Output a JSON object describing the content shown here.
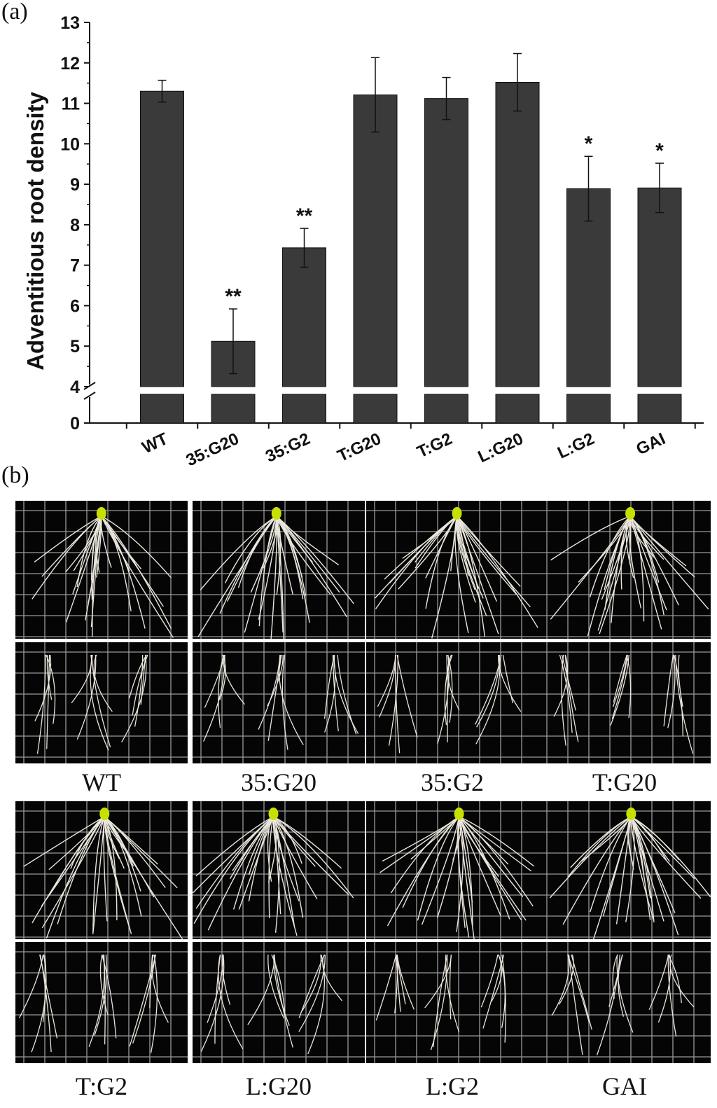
{
  "panel_a_label": "(a)",
  "panel_b_label": "(b)",
  "chart_data": {
    "type": "bar",
    "title": "",
    "ylabel": "Adventitious root density",
    "xlabel": "",
    "categories": [
      "WT",
      "35:G20",
      "35:G2",
      "T:G20",
      "T:G2",
      "L:G20",
      "L:G2",
      "GAI"
    ],
    "values": [
      11.3,
      5.12,
      7.43,
      11.21,
      11.12,
      11.52,
      8.89,
      8.91
    ],
    "errors": [
      0.27,
      0.8,
      0.48,
      0.92,
      0.52,
      0.71,
      0.8,
      0.61
    ],
    "significance": [
      "",
      "**",
      "**",
      "",
      "",
      "",
      "*",
      "*"
    ],
    "yticks_upper": [
      "4",
      "5",
      "6",
      "7",
      "8",
      "9",
      "10",
      "11",
      "12",
      "13"
    ],
    "ytick_lower": "0",
    "ylim_upper": [
      4,
      13
    ],
    "ylim_lower": [
      0,
      4
    ],
    "axis_break": true,
    "bar_color": "#3a3a3a"
  },
  "photos": {
    "labels": [
      "WT",
      "35:G20",
      "35:G2",
      "T:G20",
      "T:G2",
      "L:G20",
      "L:G2",
      "GAI"
    ]
  }
}
